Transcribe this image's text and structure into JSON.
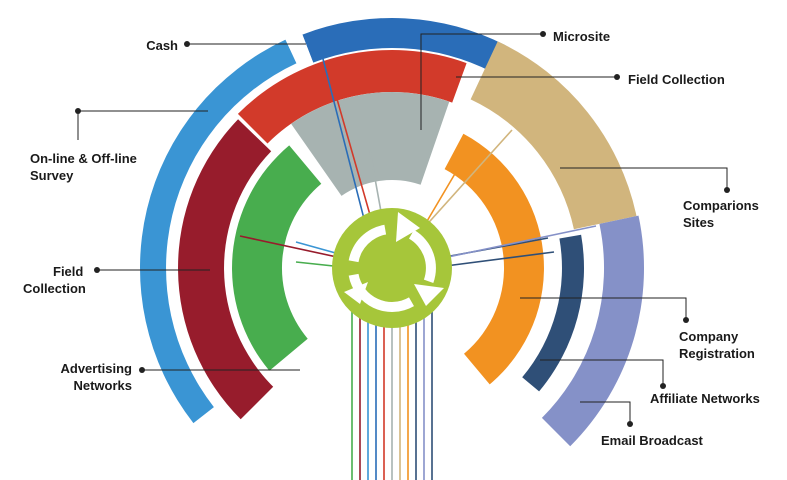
{
  "labels": {
    "cash": "Cash",
    "microsite": "Microsite",
    "field_collection_top": "Field Collection",
    "online_offline_1": "On-line & Off-line",
    "online_offline_2": "Survey",
    "comparisons_1": "Comparions",
    "comparisons_2": "Sites",
    "field_collection_left_1": "Field",
    "field_collection_left_2": "Collection",
    "company_reg_1": "Company",
    "company_reg_2": "Registration",
    "advertising_1": "Advertising",
    "advertising_2": "Networks",
    "affiliate": "Affiliate Networks",
    "email": "Email Broadcast"
  },
  "colors": {
    "cash": "#2a6db8",
    "online_offline": "#3a95d4",
    "field_collection_top": "#d23a2a",
    "field_collection_left": "#971c2c",
    "microsite": "#a7b3b1",
    "advertising": "#48ad4e",
    "comparisons": "#d1b57d",
    "company_reg": "#f29221",
    "affiliate": "#2f4f77",
    "email": "#8591c8",
    "hub": "#a6c63a"
  },
  "icons": {
    "hub": "refresh-cycle-icon"
  }
}
